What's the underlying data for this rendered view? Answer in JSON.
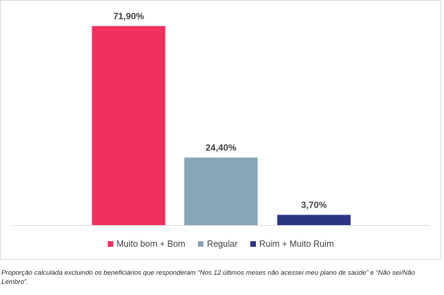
{
  "chart_data": {
    "type": "bar",
    "categories": [
      "Muito bom + Bom",
      "Regular",
      "Ruim + Muito Ruim"
    ],
    "values": [
      71.9,
      24.4,
      3.7
    ],
    "value_labels": [
      "71,90%",
      "24,40%",
      "3,70%"
    ],
    "colors": [
      "#f0305f",
      "#87a6b7",
      "#2b3583"
    ],
    "ylim": [
      0,
      75
    ],
    "grid": false,
    "legend_position": "bottom"
  },
  "footnote": "Proporção calculada excluindo os beneficiários que responderam “Nos 12 últimos meses não acessei meu plano de saúde” e “Não sei/Não Lembro”."
}
